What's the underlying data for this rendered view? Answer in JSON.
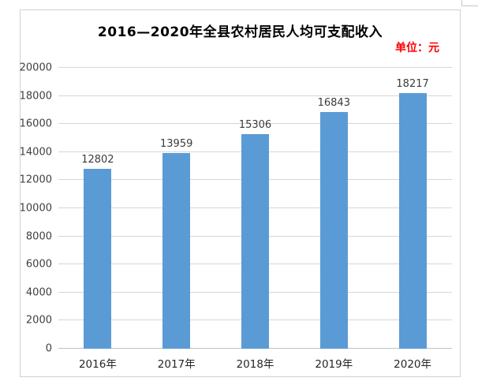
{
  "colors": {
    "bar_fill": "#5b9bd5",
    "unit_text": "#ff0000",
    "title_text": "#000000",
    "gridline": "#d6d6d6",
    "axis_label": "#404040",
    "category_label": "#262626",
    "value_label": "#3b3b3b",
    "frame_border": "#d0d0d0"
  },
  "chart_data": {
    "type": "bar",
    "title": "2016—2020年全县农村居民人均可支配收入",
    "unit": "单位：元",
    "categories": [
      "2016年",
      "2017年",
      "2018年",
      "2019年",
      "2020年"
    ],
    "values": [
      12802,
      13959,
      15306,
      16843,
      18217
    ],
    "ylim": [
      0,
      20000
    ],
    "ytick_step": 2000,
    "yticks": [
      0,
      2000,
      4000,
      6000,
      8000,
      10000,
      12000,
      14000,
      16000,
      18000,
      20000
    ],
    "xlabel": "",
    "ylabel": "",
    "grid": true,
    "legend": "none"
  }
}
